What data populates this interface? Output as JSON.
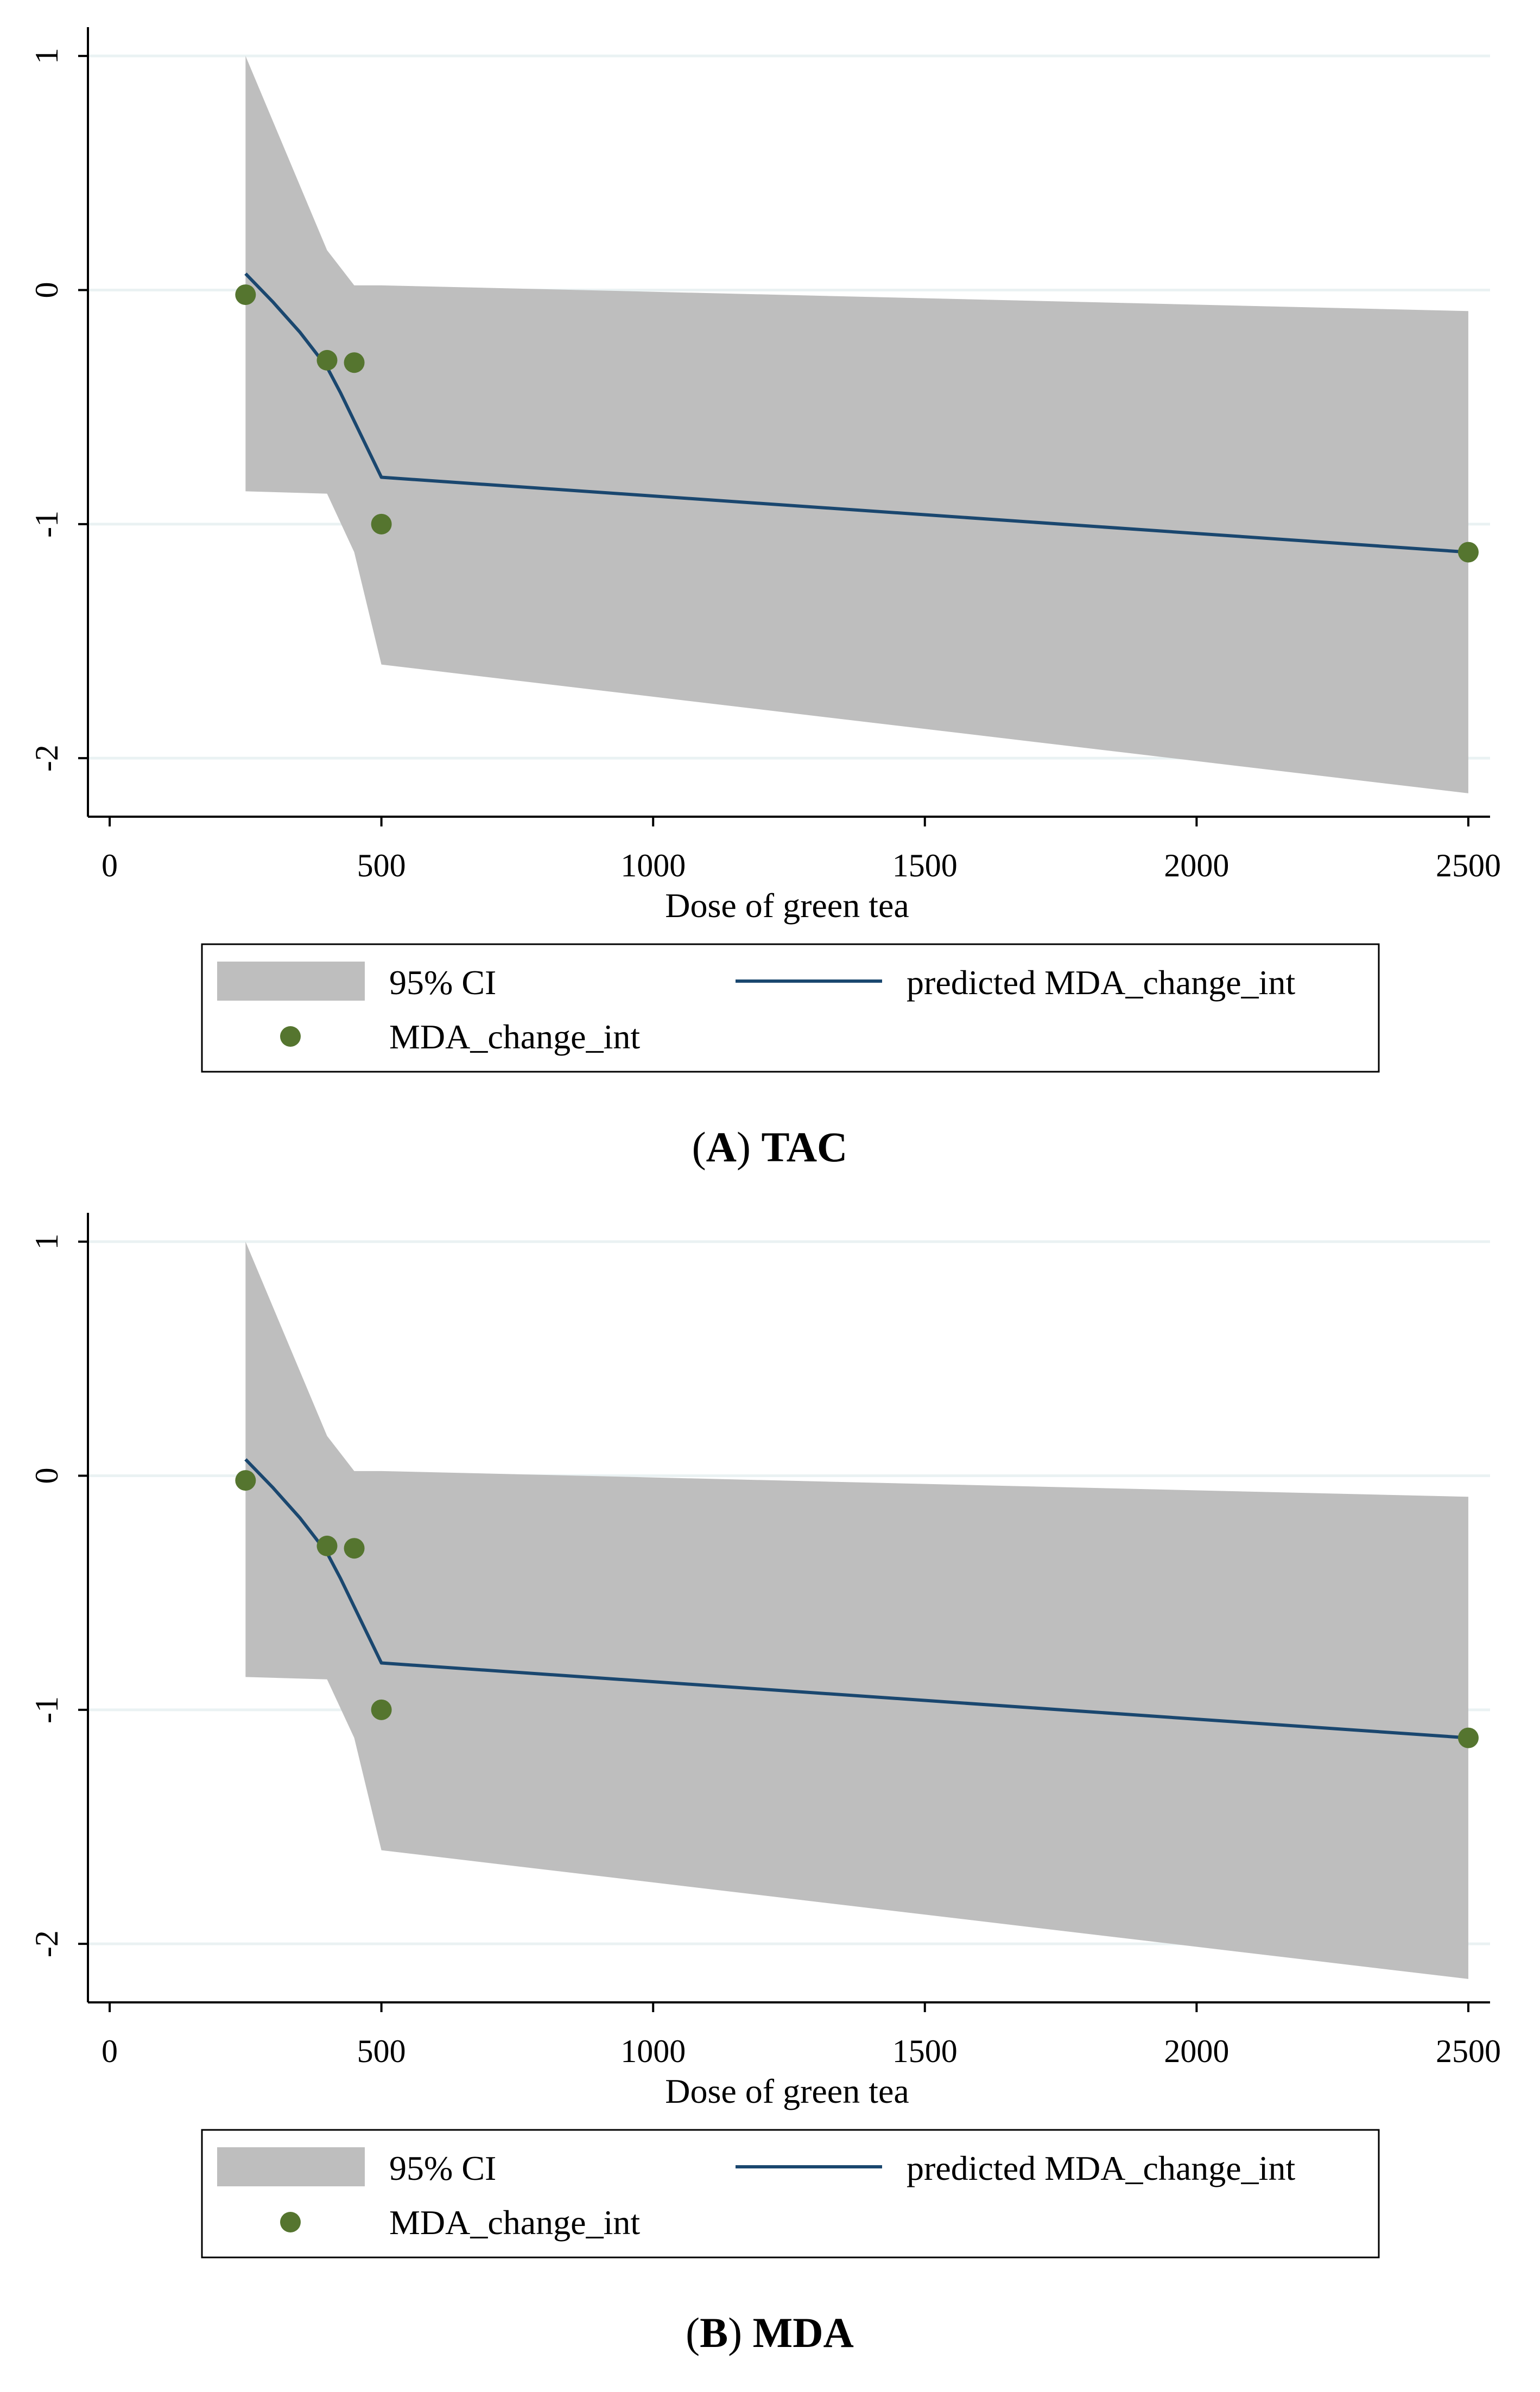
{
  "colors": {
    "ci_fill": "#BEBEBE",
    "line": "#1A476F",
    "marker": "#55752F",
    "grid": "#EAF2F3",
    "axis": "#000000"
  },
  "chart_data": [
    {
      "type": "line",
      "panel_letter": "A",
      "panel_title": "TAC",
      "xlabel": "Dose of green tea",
      "ylabel": "",
      "xlim": [
        -40,
        2540
      ],
      "ylim": [
        -2.25,
        1.1
      ],
      "x_ticks": [
        0,
        500,
        1000,
        1500,
        2000,
        2500
      ],
      "x_tick_labels": [
        "0",
        "500",
        "1000",
        "1500",
        "2000",
        "2500"
      ],
      "y_ticks": [
        1,
        0,
        -1,
        -2
      ],
      "y_tick_labels": [
        "1",
        "0",
        "-1",
        "-2"
      ],
      "series": [
        {
          "name": "95% CI",
          "kind": "band",
          "x": [
            250,
            400,
            450,
            500,
            2500
          ],
          "upper": [
            1.0,
            0.17,
            0.02,
            0.02,
            -0.09
          ],
          "lower": [
            -0.86,
            -0.87,
            -1.12,
            -1.6,
            -2.15
          ]
        },
        {
          "name": "predicted MDA_change_int",
          "kind": "line",
          "x": [
            250,
            300,
            350,
            400,
            425,
            450,
            475,
            500,
            2500
          ],
          "y": [
            0.07,
            -0.05,
            -0.18,
            -0.33,
            -0.44,
            -0.56,
            -0.68,
            -0.8,
            -1.12
          ]
        },
        {
          "name": "MDA_change_int",
          "kind": "scatter",
          "x": [
            250,
            400,
            450,
            500,
            2500
          ],
          "y": [
            -0.02,
            -0.3,
            -0.31,
            -1.0,
            -1.12
          ]
        }
      ],
      "legend": {
        "ci_label": "95% CI",
        "line_label": "predicted MDA_change_int",
        "marker_label": "MDA_change_int"
      }
    },
    {
      "type": "line",
      "panel_letter": "B",
      "panel_title": "MDA",
      "xlabel": "Dose of green tea",
      "ylabel": "",
      "xlim": [
        -40,
        2540
      ],
      "ylim": [
        -2.25,
        1.1
      ],
      "x_ticks": [
        0,
        500,
        1000,
        1500,
        2000,
        2500
      ],
      "x_tick_labels": [
        "0",
        "500",
        "1000",
        "1500",
        "2000",
        "2500"
      ],
      "y_ticks": [
        1,
        0,
        -1,
        -2
      ],
      "y_tick_labels": [
        "1",
        "0",
        "-1",
        "-2"
      ],
      "series": [
        {
          "name": "95% CI",
          "kind": "band",
          "x": [
            250,
            400,
            450,
            500,
            2500
          ],
          "upper": [
            1.0,
            0.17,
            0.02,
            0.02,
            -0.09
          ],
          "lower": [
            -0.86,
            -0.87,
            -1.12,
            -1.6,
            -2.15
          ]
        },
        {
          "name": "predicted MDA_change_int",
          "kind": "line",
          "x": [
            250,
            300,
            350,
            400,
            425,
            450,
            475,
            500,
            2500
          ],
          "y": [
            0.07,
            -0.05,
            -0.18,
            -0.33,
            -0.44,
            -0.56,
            -0.68,
            -0.8,
            -1.12
          ]
        },
        {
          "name": "MDA_change_int",
          "kind": "scatter",
          "x": [
            250,
            400,
            450,
            500,
            2500
          ],
          "y": [
            -0.02,
            -0.3,
            -0.31,
            -1.0,
            -1.12
          ]
        }
      ],
      "legend": {
        "ci_label": "95% CI",
        "line_label": "predicted MDA_change_int",
        "marker_label": "MDA_change_int"
      }
    }
  ]
}
